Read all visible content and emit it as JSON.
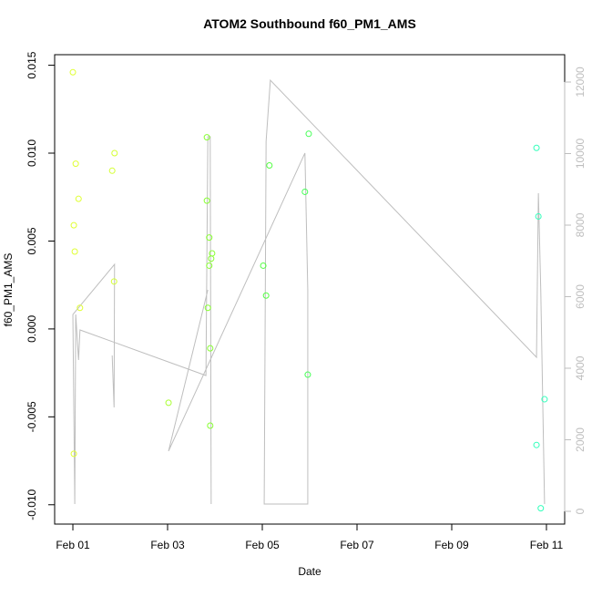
{
  "chart_data": {
    "type": "scatter",
    "title": "ATOM2 Southbound f60_PM1_AMS",
    "xlabel": "Date",
    "ylabel": "f60_PM1_AMS",
    "xlim": [
      -0.385,
      10.385
    ],
    "xticks": [
      {
        "value": 0,
        "label": "Feb 01"
      },
      {
        "value": 2,
        "label": "Feb 03"
      },
      {
        "value": 4,
        "label": "Feb 05"
      },
      {
        "value": 6,
        "label": "Feb 07"
      },
      {
        "value": 8,
        "label": "Feb 09"
      },
      {
        "value": 10,
        "label": "Feb 11"
      }
    ],
    "ylim": [
      -0.0111,
      0.0156
    ],
    "yticks": [
      {
        "value": -0.01,
        "label": "-0.010"
      },
      -0.005,
      {
        "value": 0,
        "label": "0.000"
      },
      0.005,
      {
        "value": 0.01,
        "label": "0.010"
      },
      0.015
    ],
    "y2lim": [
      -357,
      12764
    ],
    "y2ticks": [
      0,
      2000,
      4000,
      6000,
      8000,
      10000,
      12000
    ],
    "x": [
      0.0,
      0.06,
      0.12,
      0.02,
      0.04,
      0.15,
      0.02,
      0.83,
      0.88,
      0.87,
      2.02,
      2.83,
      2.83,
      2.88,
      2.94,
      2.92,
      2.88,
      2.85,
      2.9,
      2.9,
      4.02,
      4.08,
      4.15,
      4.9,
      4.98,
      4.96,
      9.79,
      9.83,
      9.79,
      9.88,
      9.96
    ],
    "values": [
      0.0146,
      0.0094,
      0.0074,
      0.0059,
      0.0044,
      0.0012,
      -0.0071,
      0.009,
      0.01,
      0.0027,
      -0.0042,
      0.0109,
      0.0073,
      0.0052,
      0.0043,
      0.004,
      0.0036,
      0.0012,
      -0.0011,
      -0.0055,
      0.0036,
      0.0019,
      0.0093,
      0.0078,
      0.0111,
      -0.0026,
      0.0103,
      0.0064,
      -0.0066,
      -0.0102,
      -0.004
    ],
    "colors": [
      "#e0ff33",
      "#e0ff33",
      "#e0ff33",
      "#e0ff33",
      "#e0ff33",
      "#e0ff33",
      "#e0ff33",
      "#d4ff33",
      "#d4ff33",
      "#d4ff33",
      "#aaff33",
      "#88ff33",
      "#88ff33",
      "#88ff33",
      "#88ff33",
      "#88ff33",
      "#88ff33",
      "#88ff33",
      "#88ff33",
      "#88ff33",
      "#55ff44",
      "#55ff44",
      "#55ff44",
      "#44ff55",
      "#44ff55",
      "#44ff55",
      "#33ffbb",
      "#33ffbb",
      "#33ffbb",
      "#33ffbb",
      "#33ffbb"
    ],
    "line": {
      "axis": "y2",
      "color": "#bebebe",
      "x": [
        0.83,
        0.87,
        0.88,
        0.0,
        0.04,
        0.06,
        0.12,
        0.15,
        2.81,
        2.85,
        2.9,
        2.92,
        null,
        2.85,
        2.02,
        4.9,
        4.96,
        4.96,
        4.04,
        4.08,
        4.17,
        9.79,
        9.83,
        9.88,
        9.96
      ],
      "values": [
        4357,
        2904,
        6904,
        5503,
        204,
        5503,
        4229,
        5070,
        3796,
        10471,
        10471,
        204,
        null,
        6191,
        1682,
        10013,
        6191,
        204,
        204,
        10344,
        12051,
        4306,
        8892,
        6191,
        204
      ]
    },
    "y2_label_color": "#bebebe"
  }
}
